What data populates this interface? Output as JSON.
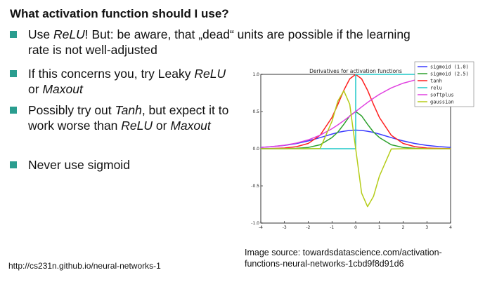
{
  "slide": {
    "title": "What activation function should I use?",
    "bullets": [
      {
        "segments": [
          {
            "text": "Use ",
            "italic": false
          },
          {
            "text": "ReLU",
            "italic": true
          },
          {
            "text": "! But: be aware, that „dead“ units are possible if the learning rate is not well-adjusted",
            "italic": false
          }
        ]
      },
      {
        "segments": [
          {
            "text": "If this concerns you, try Leaky ",
            "italic": false
          },
          {
            "text": "ReLU",
            "italic": true
          },
          {
            "text": " or ",
            "italic": false
          },
          {
            "text": "Maxout",
            "italic": true
          }
        ]
      },
      {
        "segments": [
          {
            "text": "Possibly try out ",
            "italic": false
          },
          {
            "text": "Tanh",
            "italic": true
          },
          {
            "text": ", but expect it to work worse than ",
            "italic": false
          },
          {
            "text": "ReLU",
            "italic": true
          },
          {
            "text": " or ",
            "italic": false
          },
          {
            "text": "Maxout",
            "italic": true
          }
        ]
      },
      {
        "segments": [
          {
            "text": "Never use sigmoid",
            "italic": false
          }
        ]
      }
    ],
    "bullet_color": "#2a9d8f",
    "footer_left": "http://cs231n.github.io/neural-networks-1",
    "footer_right": "Image source: towardsdatascience.com/activation-functions-neural-networks-1cbd9f8d91d6"
  },
  "chart_data": {
    "type": "line",
    "title": "Derivatives for activation functions",
    "xlabel": "",
    "ylabel": "",
    "xlim": [
      -4,
      4
    ],
    "ylim": [
      -1.0,
      1.0
    ],
    "x_ticks": [
      "-4",
      "-3",
      "-2",
      "-1",
      "0",
      "1",
      "2",
      "3",
      "4"
    ],
    "y_ticks": [
      "-1.0",
      "-0.5",
      "0.0",
      "0.5",
      "1.0"
    ],
    "grid": false,
    "legend_position": "top-right",
    "x": [
      -4,
      -3.5,
      -3,
      -2.5,
      -2,
      -1.5,
      -1,
      -0.75,
      -0.5,
      -0.25,
      0,
      0.25,
      0.5,
      0.75,
      1,
      1.5,
      2,
      2.5,
      3,
      3.5,
      4
    ],
    "series": [
      {
        "name": "sigmoid (1.0)",
        "color": "#3b3bff",
        "values": [
          0.018,
          0.028,
          0.045,
          0.07,
          0.105,
          0.149,
          0.197,
          0.219,
          0.235,
          0.246,
          0.25,
          0.246,
          0.235,
          0.219,
          0.197,
          0.149,
          0.105,
          0.07,
          0.045,
          0.028,
          0.018
        ]
      },
      {
        "name": "sigmoid (2.5)",
        "color": "#2ca02c",
        "values": [
          0.0001,
          0.0004,
          0.001,
          0.005,
          0.017,
          0.053,
          0.15,
          0.224,
          0.328,
          0.441,
          0.5,
          0.441,
          0.328,
          0.224,
          0.15,
          0.053,
          0.017,
          0.005,
          0.001,
          0.0004,
          0.0001
        ]
      },
      {
        "name": "tanh",
        "color": "#ff1f1f",
        "values": [
          0.001,
          0.004,
          0.01,
          0.027,
          0.071,
          0.181,
          0.42,
          0.596,
          0.786,
          0.94,
          1.0,
          0.94,
          0.786,
          0.596,
          0.42,
          0.181,
          0.071,
          0.027,
          0.01,
          0.004,
          0.001
        ]
      },
      {
        "name": "relu",
        "color": "#1fc8c8",
        "values": [
          0,
          0,
          0,
          0,
          0,
          0,
          0,
          0,
          0,
          0,
          1,
          1,
          1,
          1,
          1,
          1,
          1,
          1,
          1,
          1,
          1
        ]
      },
      {
        "name": "softplus",
        "color": "#e040e0",
        "values": [
          0.018,
          0.029,
          0.047,
          0.076,
          0.119,
          0.182,
          0.269,
          0.321,
          0.378,
          0.438,
          0.5,
          0.562,
          0.622,
          0.679,
          0.731,
          0.818,
          0.881,
          0.924,
          0.953,
          0.971,
          0.982
        ]
      },
      {
        "name": "gaussian",
        "color": "#b5cc18",
        "values": [
          0.0,
          0.0,
          0.0,
          0.0,
          0.0,
          0.003,
          0.368,
          0.642,
          0.779,
          0.597,
          0.0,
          -0.597,
          -0.779,
          -0.642,
          -0.368,
          -0.003,
          0.0,
          0.0,
          0.0,
          0.0,
          0.0
        ]
      }
    ]
  }
}
